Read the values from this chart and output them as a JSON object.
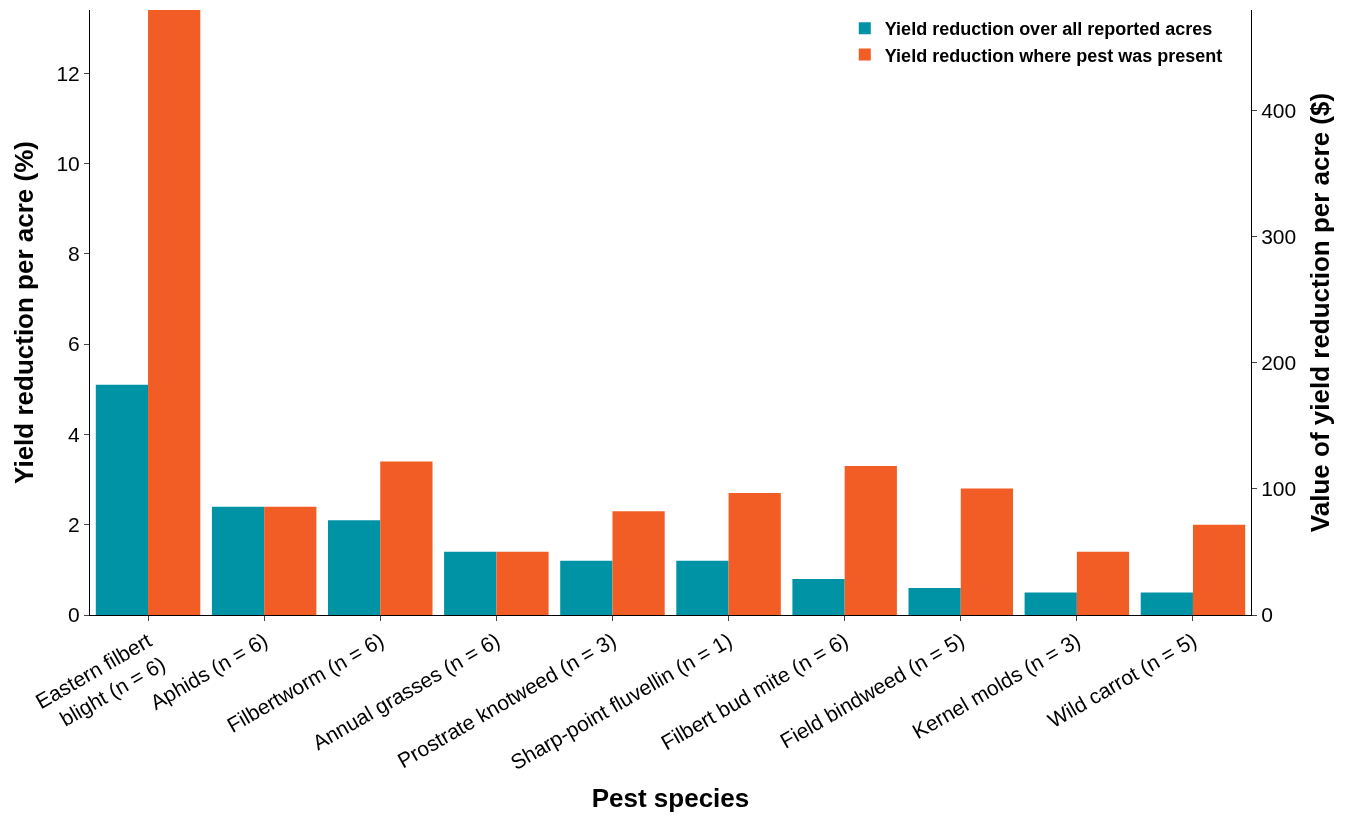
{
  "chart_data": {
    "type": "bar",
    "xlabel": "Pest species",
    "ylabel": "Yield reduction per acre (%)",
    "y2label": "Value of yield reduction per acre ($)",
    "categories": [
      "Eastern filbert\nblight (n = 6)",
      "Aphids (n = 6)",
      "Filbertworm (n = 6)",
      "Annual grasses (n = 6)",
      "Prostrate knotweed (n = 3)",
      "Sharp-point fluvellin (n = 1)",
      "Filbert bud mite (n = 6)",
      "Field bindweed (n = 5)",
      "Kernel molds (n = 3)",
      "Wild carrot (n = 5)"
    ],
    "series": [
      {
        "name": "Yield reduction over all reported acres",
        "color": "#0093a6",
        "values": [
          5.1,
          2.4,
          2.1,
          1.4,
          1.2,
          1.2,
          0.8,
          0.6,
          0.5,
          0.5
        ]
      },
      {
        "name": "Yield reduction where pest was present",
        "color": "#f15d24",
        "values": [
          13.4,
          2.4,
          3.4,
          1.4,
          2.3,
          2.7,
          3.3,
          2.8,
          1.4,
          2.0
        ]
      }
    ],
    "ylim": [
      0,
      13.4
    ],
    "yticks": [
      0,
      2,
      4,
      6,
      8,
      10,
      12
    ],
    "y2lim": [
      0,
      480
    ],
    "y2ticks": [
      0,
      100,
      200,
      300,
      400
    ],
    "legend": "top right"
  }
}
